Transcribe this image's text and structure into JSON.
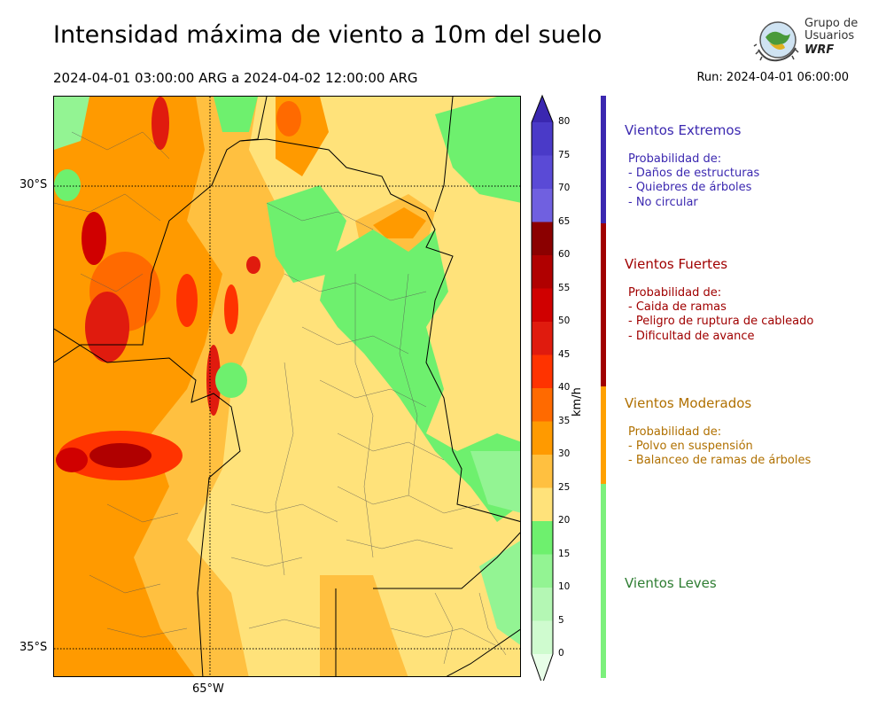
{
  "header": {
    "title": "Intensidad máxima de viento a 10m del suelo",
    "period": "2024-04-01 03:00:00 ARG  a  2024-04-02 12:00:00 ARG",
    "run": "Run: 2024-04-01 06:00:00"
  },
  "logo": {
    "line1": "Grupo de",
    "line2": "Usuarios",
    "line3": "WRF"
  },
  "axes": {
    "lat_top": "30°S",
    "lat_bottom": "35°S",
    "lon": "65°W"
  },
  "colorbar": {
    "unit": "km/h",
    "ticks": [
      "80",
      "75",
      "70",
      "65",
      "60",
      "55",
      "50",
      "45",
      "40",
      "35",
      "30",
      "25",
      "20",
      "15",
      "10",
      "5",
      "0"
    ],
    "colors": [
      "#3a27b0",
      "#4a3ac8",
      "#5a4ad6",
      "#7060e0",
      "#8b0000",
      "#b00000",
      "#d00000",
      "#e01b0e",
      "#ff3300",
      "#ff6a00",
      "#ff9a00",
      "#ffc040",
      "#ffe27a",
      "#6ef06e",
      "#93f493",
      "#b4f7b4",
      "#cffbcf",
      "#e8fee8"
    ],
    "colormap": "wind speed, green (light) to yellow/orange/red (strong) to purple (extreme)"
  },
  "categories": [
    {
      "title": "Vientos Extremos",
      "color": "#3b28b0",
      "bar_color": "#3b28b0",
      "desc": [
        "Probabilidad de:",
        "- Daños de estructuras",
        "- Quiebres de árboles",
        "- No circular"
      ]
    },
    {
      "title": "Vientos Fuertes",
      "color": "#a00000",
      "bar_color": "#a00000",
      "desc": [
        "Probabilidad de:",
        "- Caida de ramas",
        "- Peligro de ruptura de cableado",
        "- Dificultad de avance"
      ]
    },
    {
      "title": "Vientos Moderados",
      "color": "#b07000",
      "bar_color": "#ffa000",
      "desc": [
        "Probabilidad de:",
        "- Polvo en suspensión",
        "- Balanceo de ramas de árboles"
      ]
    },
    {
      "title": "Vientos Leves",
      "color": "#2e7d32",
      "bar_color": "#7cf07c",
      "desc": []
    }
  ],
  "map": {
    "region": "Central-northern Argentina",
    "features": [
      "province boundaries",
      "department boundaries",
      "gridlines at 30°S, 35°S, 65°W"
    ]
  }
}
